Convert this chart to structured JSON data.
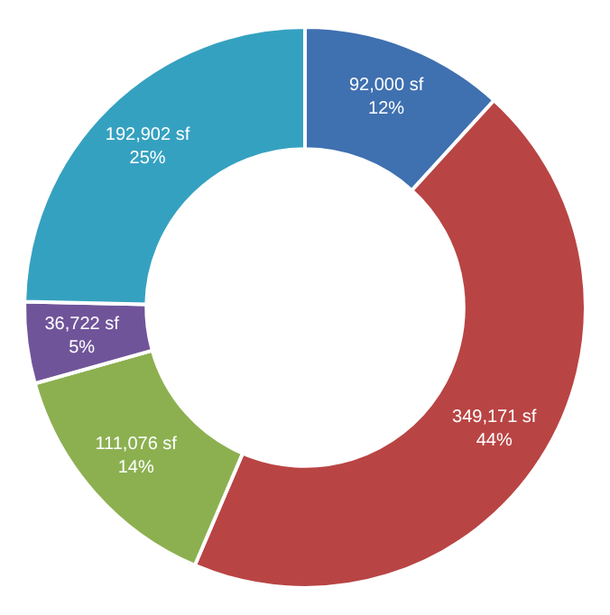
{
  "chart_data": {
    "type": "donut",
    "categories": [
      null,
      null,
      null,
      null,
      null
    ],
    "values": [
      92000,
      349171,
      111076,
      36722,
      192902
    ],
    "colors": [
      "#3f70b0",
      "#b94444",
      "#8cb050",
      "#70549a",
      "#35a1c0"
    ],
    "value_labels": [
      "92,000 sf\n12%",
      "349,171 sf\n44%",
      "111,076 sf\n14%",
      "36,722 sf\n5%",
      "192,902 sf\n25%"
    ]
  }
}
